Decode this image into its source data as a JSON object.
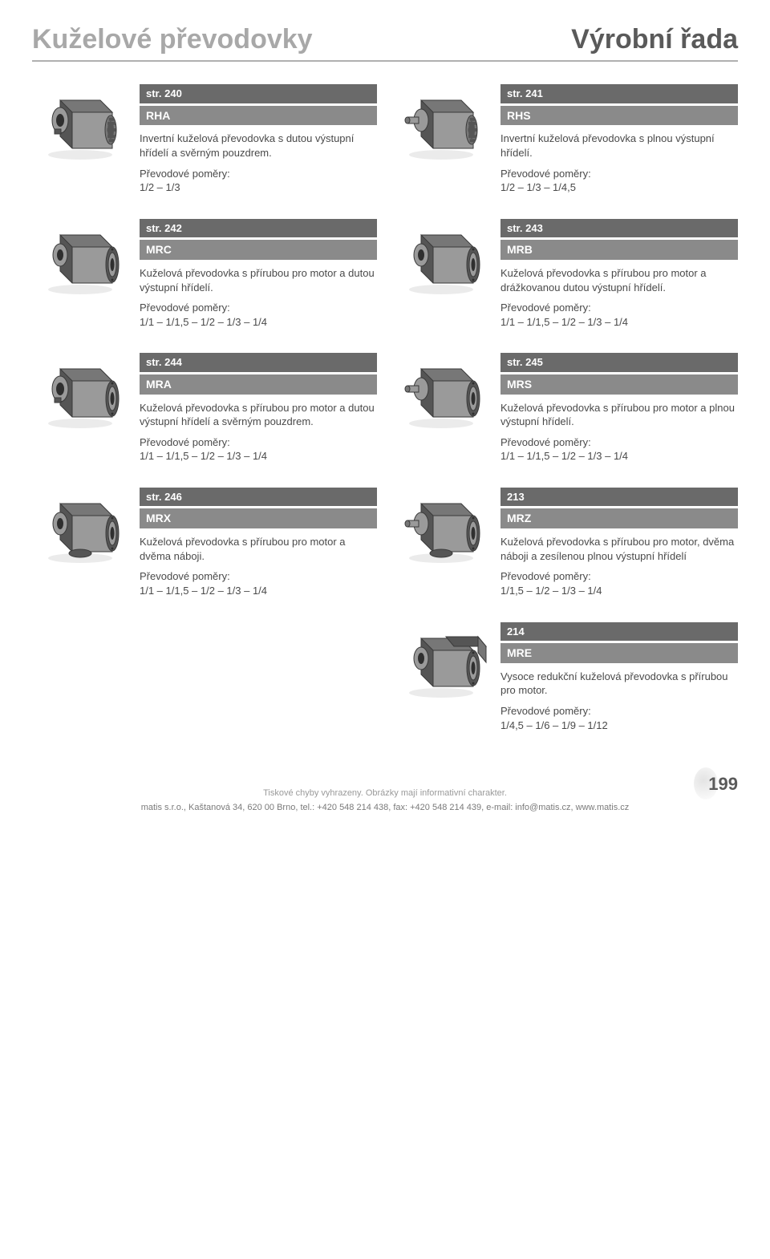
{
  "header": {
    "title_left": "Kuželové převodovky",
    "title_right": "Výrobní řada"
  },
  "ratio_label": "Převodové poměry:",
  "products": [
    {
      "page_ref": "str. 240",
      "code": "RHA",
      "desc": "Invertní kuželová převodovka s dutou výstupní hřídelí a svěrným pouzdrem.",
      "ratios": "1/2 – 1/3",
      "variant": "rha"
    },
    {
      "page_ref": "str. 241",
      "code": "RHS",
      "desc": "Invertní kuželová převodovka s plnou výstupní hřídelí.",
      "ratios": "1/2 – 1/3 – 1/4,5",
      "variant": "rhs"
    },
    {
      "page_ref": "str. 242",
      "code": "MRC",
      "desc": "Kuželová převodovka s přírubou pro motor a dutou výstupní hřídelí.",
      "ratios": "1/1 – 1/1,5 – 1/2 – 1/3 – 1/4",
      "variant": "mrc"
    },
    {
      "page_ref": "str. 243",
      "code": "MRB",
      "desc": "Kuželová převodovka s přírubou pro motor a drážkovanou dutou výstupní hřídelí.",
      "ratios": "1/1 – 1/1,5 – 1/2 – 1/3 – 1/4",
      "variant": "mrb"
    },
    {
      "page_ref": "str. 244",
      "code": "MRA",
      "desc": "Kuželová převodovka s přírubou pro motor a dutou výstupní hřídelí a svěrným pouzdrem.",
      "ratios": "1/1 – 1/1,5 – 1/2 – 1/3 – 1/4",
      "variant": "mra"
    },
    {
      "page_ref": "str. 245",
      "code": "MRS",
      "desc": "Kuželová převodovka s přírubou pro motor a plnou výstupní hřídelí.",
      "ratios": "1/1 – 1/1,5 – 1/2 – 1/3 – 1/4",
      "variant": "mrs"
    },
    {
      "page_ref": "str. 246",
      "code": "MRX",
      "desc": "Kuželová převodovka s přírubou pro motor a dvěma náboji.",
      "ratios": "1/1 – 1/1,5 – 1/2 – 1/3 – 1/4",
      "variant": "mrx"
    },
    {
      "page_ref": "213",
      "code": "MRZ",
      "desc": "Kuželová převodovka s přírubou pro motor, dvěma náboji a zesílenou plnou výstupní hřídelí",
      "ratios": "1/1,5 – 1/2 – 1/3 – 1/4",
      "variant": "mrz"
    },
    {
      "page_ref": "214",
      "code": "MRE",
      "desc": "Vysoce redukční kuželová převodovka s přírubou pro motor.",
      "ratios": "1/4,5 – 1/6 – 1/9 – 1/12",
      "variant": "mre"
    }
  ],
  "footer": {
    "note": "Tiskové chyby vyhrazeny. Obrázky mají informativní charakter.",
    "company": "matis s.r.o., Kaštanová 34, 620 00 Brno, tel.: +420 548 214 438, fax: +420 548 214 439, e-mail: info@matis.cz, www.matis.cz",
    "page_num": "199"
  },
  "colors": {
    "header_bar": "#6a6a6a",
    "code_bar": "#8a8a8a",
    "title_grey": "#a8a8a8",
    "title_dark": "#5a5a5a",
    "body_dark": "#555555",
    "body_mid": "#777777",
    "body_light": "#9a9a9a"
  }
}
